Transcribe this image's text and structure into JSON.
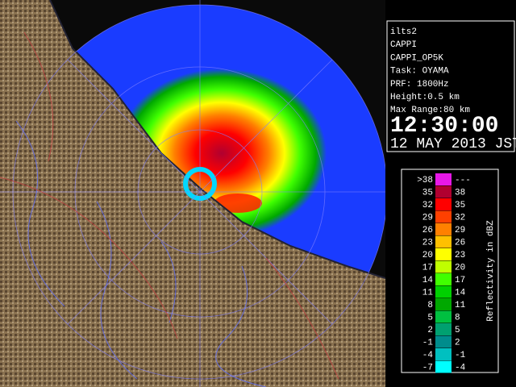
{
  "info": {
    "lines": [
      "ilts2",
      "CAPPI",
      "CAPPI_OP5K",
      "Task: OYAMA",
      "PRF: 1800Hz",
      "Height:0.5 km",
      "Max Range:80 km"
    ],
    "time": "12:30:00",
    "date": "12 MAY 2013 JST"
  },
  "legend": {
    "title": "Reflectivity in dBZ",
    "rows": [
      {
        "low": ">38",
        "high": "---",
        "color": "#e818e8"
      },
      {
        "low": "35",
        "high": "38",
        "color": "#b00030"
      },
      {
        "low": "32",
        "high": "35",
        "color": "#ff0000"
      },
      {
        "low": "29",
        "high": "32",
        "color": "#ff4000"
      },
      {
        "low": "26",
        "high": "29",
        "color": "#ff8000"
      },
      {
        "low": "23",
        "high": "26",
        "color": "#ffc000"
      },
      {
        "low": "20",
        "high": "23",
        "color": "#ffff00"
      },
      {
        "low": "17",
        "high": "20",
        "color": "#c0ff00"
      },
      {
        "low": "14",
        "high": "17",
        "color": "#40ff00"
      },
      {
        "low": "11",
        "high": "14",
        "color": "#00d000"
      },
      {
        "low": "8",
        "high": "11",
        "color": "#00a800"
      },
      {
        "low": "5",
        "high": "8",
        "color": "#00c040"
      },
      {
        "low": "2",
        "high": "5",
        "color": "#00a070"
      },
      {
        "low": "-1",
        "high": "2",
        "color": "#008c8c"
      },
      {
        "low": "-4",
        "high": "-1",
        "color": "#00c0c0"
      },
      {
        "low": "-7",
        "high": "-4",
        "color": "#00ffff"
      }
    ]
  }
}
